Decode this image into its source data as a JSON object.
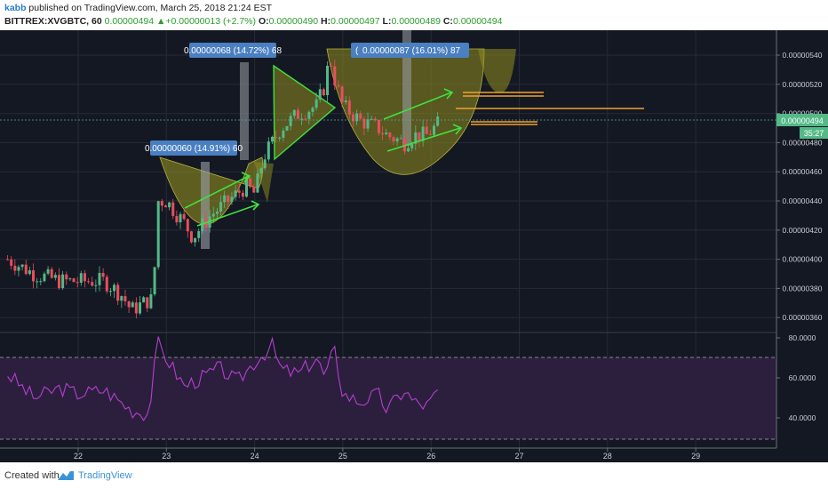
{
  "header": {
    "author": "kabb",
    "published": " published on TradingView.com, March 25, 2018 21:24 EST",
    "symbol": "BITTREX:XVGBTC, 60",
    "last": "0.00000494",
    "change_arrow": "▲",
    "change": "+0.00000013 (+2.7%)",
    "o_label": "O:",
    "o": "0.00000490",
    "h_label": "H:",
    "h": "0.00000497",
    "l_label": "L:",
    "l": "0.00000489",
    "c_label": "C:",
    "c": "0.00000494"
  },
  "price_axis": {
    "ticks": [
      "0.00000540",
      "0.00000520",
      "0.00000500",
      "0.00000480",
      "0.00000460",
      "0.00000440",
      "0.00000420",
      "0.00000400",
      "0.00000380",
      "0.00000360"
    ],
    "current_price": "0.00000494",
    "countdown": "35:27"
  },
  "rsi_axis": {
    "ticks": [
      "80.0000",
      "60.0000",
      "40.0000"
    ]
  },
  "time_axis": {
    "ticks": [
      "22",
      "23",
      "24",
      "25",
      "26",
      "27",
      "28",
      "29"
    ]
  },
  "annotations": {
    "measure_1": "0.00000060 (14.91%) 60",
    "measure_2": "0.00000068 (14.72%) 68",
    "measure_3": "0.00000087 (16.01%) 87",
    "measure_3_prefix": "("
  },
  "footer": {
    "created_with": "Created with",
    "brand": "TradingView"
  },
  "colors": {
    "chart_bg": "#141823",
    "bull": "#53b987",
    "bear": "#eb4d5c",
    "pattern_fill": "#8f8e1f",
    "arrow": "#3fe23f",
    "level": "#f0a030",
    "rsi": "#b53fcf",
    "rsi_band": "#2c1f3e",
    "label_bg": "#4a7fc1"
  },
  "chart_data": {
    "type": "candlestick",
    "symbol": "XVGBTC",
    "exchange": "BITTREX",
    "interval": "60",
    "x_ticks": [
      "22",
      "23",
      "24",
      "25",
      "26",
      "27",
      "28",
      "29"
    ],
    "y_ticks": [
      5.4e-06,
      5.2e-06,
      5e-06,
      4.8e-06,
      4.6e-06,
      4.4e-06,
      4.2e-06,
      4e-06,
      3.8e-06,
      3.6e-06
    ],
    "ylim": [
      3.5e-06,
      5.5e-06
    ],
    "last_price": 4.94e-06,
    "series": [
      {
        "name": "price_close_approx",
        "x": [
          21.2,
          21.5,
          21.8,
          22.0,
          22.3,
          22.5,
          22.6,
          22.8,
          22.85,
          22.9,
          23.0,
          23.2,
          23.3,
          23.5,
          23.7,
          23.9,
          24.0,
          24.1,
          24.2,
          24.3,
          24.5,
          24.7,
          24.8,
          24.85,
          24.9,
          25.0,
          25.2,
          25.4,
          25.5,
          25.7,
          25.8,
          25.95,
          26.1
        ],
        "y": [
          4e-06,
          3.9e-06,
          3.85e-06,
          3.85e-06,
          3.85e-06,
          3.75e-06,
          3.65e-06,
          3.72e-06,
          3.72e-06,
          4.4e-06,
          4.4e-06,
          4.25e-06,
          4.15e-06,
          4.3e-06,
          4.4e-06,
          4.5e-06,
          4.45e-06,
          4.7e-06,
          4.8e-06,
          4.9e-06,
          5e-06,
          5.05e-06,
          5.2e-06,
          5.4e-06,
          5.25e-06,
          5.05e-06,
          4.95e-06,
          4.9e-06,
          4.85e-06,
          4.8e-06,
          4.85e-06,
          4.85e-06,
          4.94e-06
        ]
      }
    ],
    "rsi": {
      "levels": [
        70,
        30
      ],
      "ticks": [
        80,
        60,
        40
      ],
      "x": [
        21.2,
        21.5,
        21.8,
        22.0,
        22.3,
        22.6,
        22.8,
        22.9,
        23.0,
        23.2,
        23.4,
        23.6,
        23.8,
        24.0,
        24.2,
        24.3,
        24.5,
        24.7,
        24.8,
        24.9,
        25.0,
        25.2,
        25.4,
        25.5,
        25.7,
        25.8,
        25.95,
        26.1
      ],
      "y": [
        62,
        50,
        55,
        52,
        54,
        44,
        42,
        78,
        70,
        56,
        60,
        65,
        58,
        68,
        76,
        64,
        62,
        70,
        60,
        75,
        52,
        48,
        52,
        44,
        54,
        48,
        46,
        54
      ]
    }
  }
}
